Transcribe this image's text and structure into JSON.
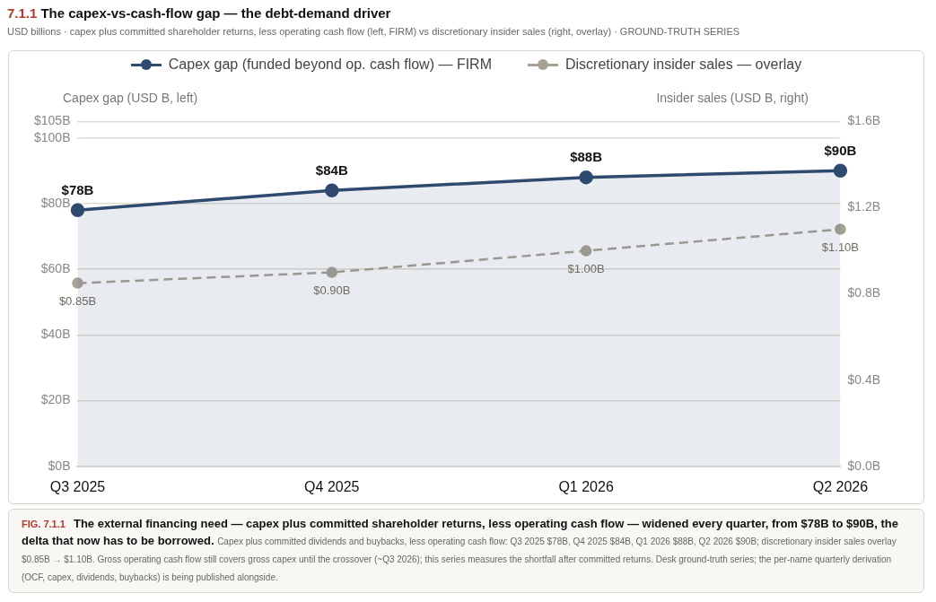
{
  "chart_data": {
    "type": "line",
    "title": "7.1.1 The capex-vs-cash-flow gap — the debt-demand driver",
    "subtitle": "USD billions · capex plus committed shareholder returns, less operating cash flow (left, FIRM) vs discretionary insider sales (right, overlay) · GROUND-TRUTH SERIES",
    "ylabel": "Capex gap  (USD B, left)",
    "y2label": "Insider sales  (USD B, right)",
    "categories": [
      "Q3 2025",
      "Q4 2025",
      "Q1 2026",
      "Q2 2026"
    ],
    "series": [
      {
        "name": "Capex gap (funded beyond op. cash flow) — FIRM",
        "type": "area",
        "color": "#2e4a6e",
        "values": [
          78,
          84,
          88,
          90
        ],
        "value_labels": [
          "$78B",
          "$84B",
          "$88B",
          "$90B"
        ],
        "line_style": "solid"
      },
      {
        "name": "Discretionary insider sales — overlay",
        "type": "line",
        "axis": "y2",
        "color": "#a8a296",
        "values": [
          0.85,
          0.9,
          1.0,
          1.1
        ],
        "value_labels": [
          "$0.85B",
          "$0.90B",
          "$1.00B",
          "$1.10B"
        ],
        "line_style": "dashed"
      }
    ],
    "ylim": [
      0,
      105
    ],
    "yticks": [
      {
        "value": 0,
        "label": "$0B"
      },
      {
        "value": 20,
        "label": "$20B"
      },
      {
        "value": 40,
        "label": "$40B"
      },
      {
        "value": 60,
        "label": "$60B"
      },
      {
        "value": 80,
        "label": "$80B"
      },
      {
        "value": 100,
        "label": "$100B"
      },
      {
        "value": 105,
        "label": "$105B"
      }
    ],
    "y2lim": [
      0,
      1.6
    ],
    "y2ticks": [
      {
        "value": 0,
        "label": "$0.0B"
      },
      {
        "value": 0.4,
        "label": "$0.4B"
      },
      {
        "value": 0.8,
        "label": "$0.8B"
      },
      {
        "value": 1.2,
        "label": "$1.2B"
      },
      {
        "value": 1.6,
        "label": "$1.6B"
      }
    ],
    "grid": "y",
    "legend": "top",
    "marker": "circle",
    "annotations": [
      "FIG. 7.1.1",
      "The external financing need — capex plus committed shareholder returns, less operating cash flow — widened every quarter, from $78B to $90B, the delta that now has to be borrowed.",
      "Capex plus committed dividends and buybacks, less operating cash flow: Q3 2025 $78B, Q4 2025 $84B, Q1 2026 $88B, Q2 2026 $90B; discretionary insider sales overlay $0.85B → $1.10B. Gross operating cash flow still covers gross capex until the crossover (~Q3 2026); this series measures the shortfall after committed returns. Desk ground-truth series; the per-name quarterly derivation (OCF, capex, dividends, buybacks) is being published alongside."
    ]
  }
}
